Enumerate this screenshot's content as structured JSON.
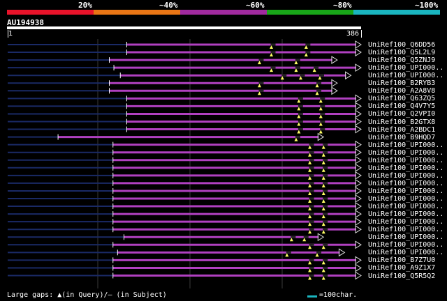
{
  "colors": {
    "scale": [
      "#e8132a",
      "#e87515",
      "#a02a9e",
      "#18a518",
      "#1ab5c0"
    ],
    "hit": "#b040c0",
    "gap_marker": "#ffff66",
    "left_tail": "#1a2a66",
    "gridline": "#3a3a3a"
  },
  "scale_labels": [
    "20%",
    "~40%",
    "~60%",
    "~80%",
    "~100%"
  ],
  "query": {
    "id": "AU194938",
    "start": "1",
    "end": "386"
  },
  "hits": [
    {
      "label": "UniRef100_Q6DD56",
      "start": 130,
      "end": 386,
      "gaps": [
        288,
        326
      ]
    },
    {
      "label": "UniRef100_Q5L2L9",
      "start": 130,
      "end": 386,
      "gaps": [
        288,
        326
      ]
    },
    {
      "label": "UniRef100_Q5ZNJ9",
      "start": 111,
      "end": 360,
      "gaps": [
        275,
        315
      ]
    },
    {
      "label": "UniRef100_UPI000..",
      "start": 116,
      "end": 386,
      "gaps": [
        288,
        315,
        335
      ]
    },
    {
      "label": "UniRef100_UPI000..",
      "start": 123,
      "end": 375,
      "gaps": [
        300,
        320,
        341
      ]
    },
    {
      "label": "UniRef100_B2RYB3",
      "start": 111,
      "end": 360,
      "gaps": [
        275,
        338
      ]
    },
    {
      "label": "UniRef100_A2A8V8",
      "start": 111,
      "end": 360,
      "gaps": [
        275,
        338
      ]
    },
    {
      "label": "UniRef100_Q63ZQ5",
      "start": 130,
      "end": 386,
      "gaps": [
        318,
        342
      ]
    },
    {
      "label": "UniRef100_Q4V7Y5",
      "start": 130,
      "end": 386,
      "gaps": [
        318,
        342
      ]
    },
    {
      "label": "UniRef100_Q2VPI0",
      "start": 130,
      "end": 386,
      "gaps": [
        318,
        342
      ]
    },
    {
      "label": "UniRef100_B2GTX8",
      "start": 130,
      "end": 386,
      "gaps": [
        318,
        342
      ]
    },
    {
      "label": "UniRef100_A2BDC1",
      "start": 130,
      "end": 386,
      "gaps": [
        318,
        342
      ]
    },
    {
      "label": "UniRef100_B9HQD7",
      "start": 55,
      "end": 345,
      "gaps": [
        315
      ]
    },
    {
      "label": "UniRef100_UPI000..",
      "start": 115,
      "end": 386,
      "gaps": [
        330,
        345
      ]
    },
    {
      "label": "UniRef100_UPI000..",
      "start": 115,
      "end": 386,
      "gaps": [
        330,
        345
      ]
    },
    {
      "label": "UniRef100_UPI000..",
      "start": 115,
      "end": 386,
      "gaps": [
        330,
        345
      ]
    },
    {
      "label": "UniRef100_UPI000..",
      "start": 115,
      "end": 386,
      "gaps": [
        330,
        345
      ]
    },
    {
      "label": "UniRef100_UPI000..",
      "start": 115,
      "end": 386,
      "gaps": [
        330,
        345
      ]
    },
    {
      "label": "UniRef100_UPI000..",
      "start": 115,
      "end": 386,
      "gaps": [
        330,
        345
      ]
    },
    {
      "label": "UniRef100_UPI000..",
      "start": 115,
      "end": 386,
      "gaps": [
        330,
        345
      ]
    },
    {
      "label": "UniRef100_UPI000..",
      "start": 115,
      "end": 386,
      "gaps": [
        330,
        345
      ]
    },
    {
      "label": "UniRef100_UPI000..",
      "start": 115,
      "end": 386,
      "gaps": [
        330,
        345
      ]
    },
    {
      "label": "UniRef100_UPI000..",
      "start": 115,
      "end": 386,
      "gaps": [
        330,
        345
      ]
    },
    {
      "label": "UniRef100_UPI000..",
      "start": 115,
      "end": 386,
      "gaps": [
        330,
        345
      ]
    },
    {
      "label": "UniRef100_UPI000..",
      "start": 115,
      "end": 386,
      "gaps": [
        330,
        345
      ]
    },
    {
      "label": "UniRef100_UPI000..",
      "start": 127,
      "end": 345,
      "gaps": [
        310,
        324
      ]
    },
    {
      "label": "UniRef100_UPI000..",
      "start": 115,
      "end": 386,
      "gaps": [
        330,
        345
      ]
    },
    {
      "label": "UniRef100_UPI000..",
      "start": 120,
      "end": 368,
      "gaps": [
        305,
        338
      ]
    },
    {
      "label": "UniRef100_B7Z7U0",
      "start": 115,
      "end": 386,
      "gaps": [
        330,
        345
      ]
    },
    {
      "label": "UniRef100_A9Z1X7",
      "start": 115,
      "end": 386,
      "gaps": [
        330,
        345
      ]
    },
    {
      "label": "UniRef100_Q5R5Q2",
      "start": 115,
      "end": 386,
      "gaps": [
        330,
        345
      ]
    }
  ],
  "footer": {
    "legend": "Large gaps: ▲(in Query)/– (in Subject)",
    "scale_key": "=100char."
  }
}
